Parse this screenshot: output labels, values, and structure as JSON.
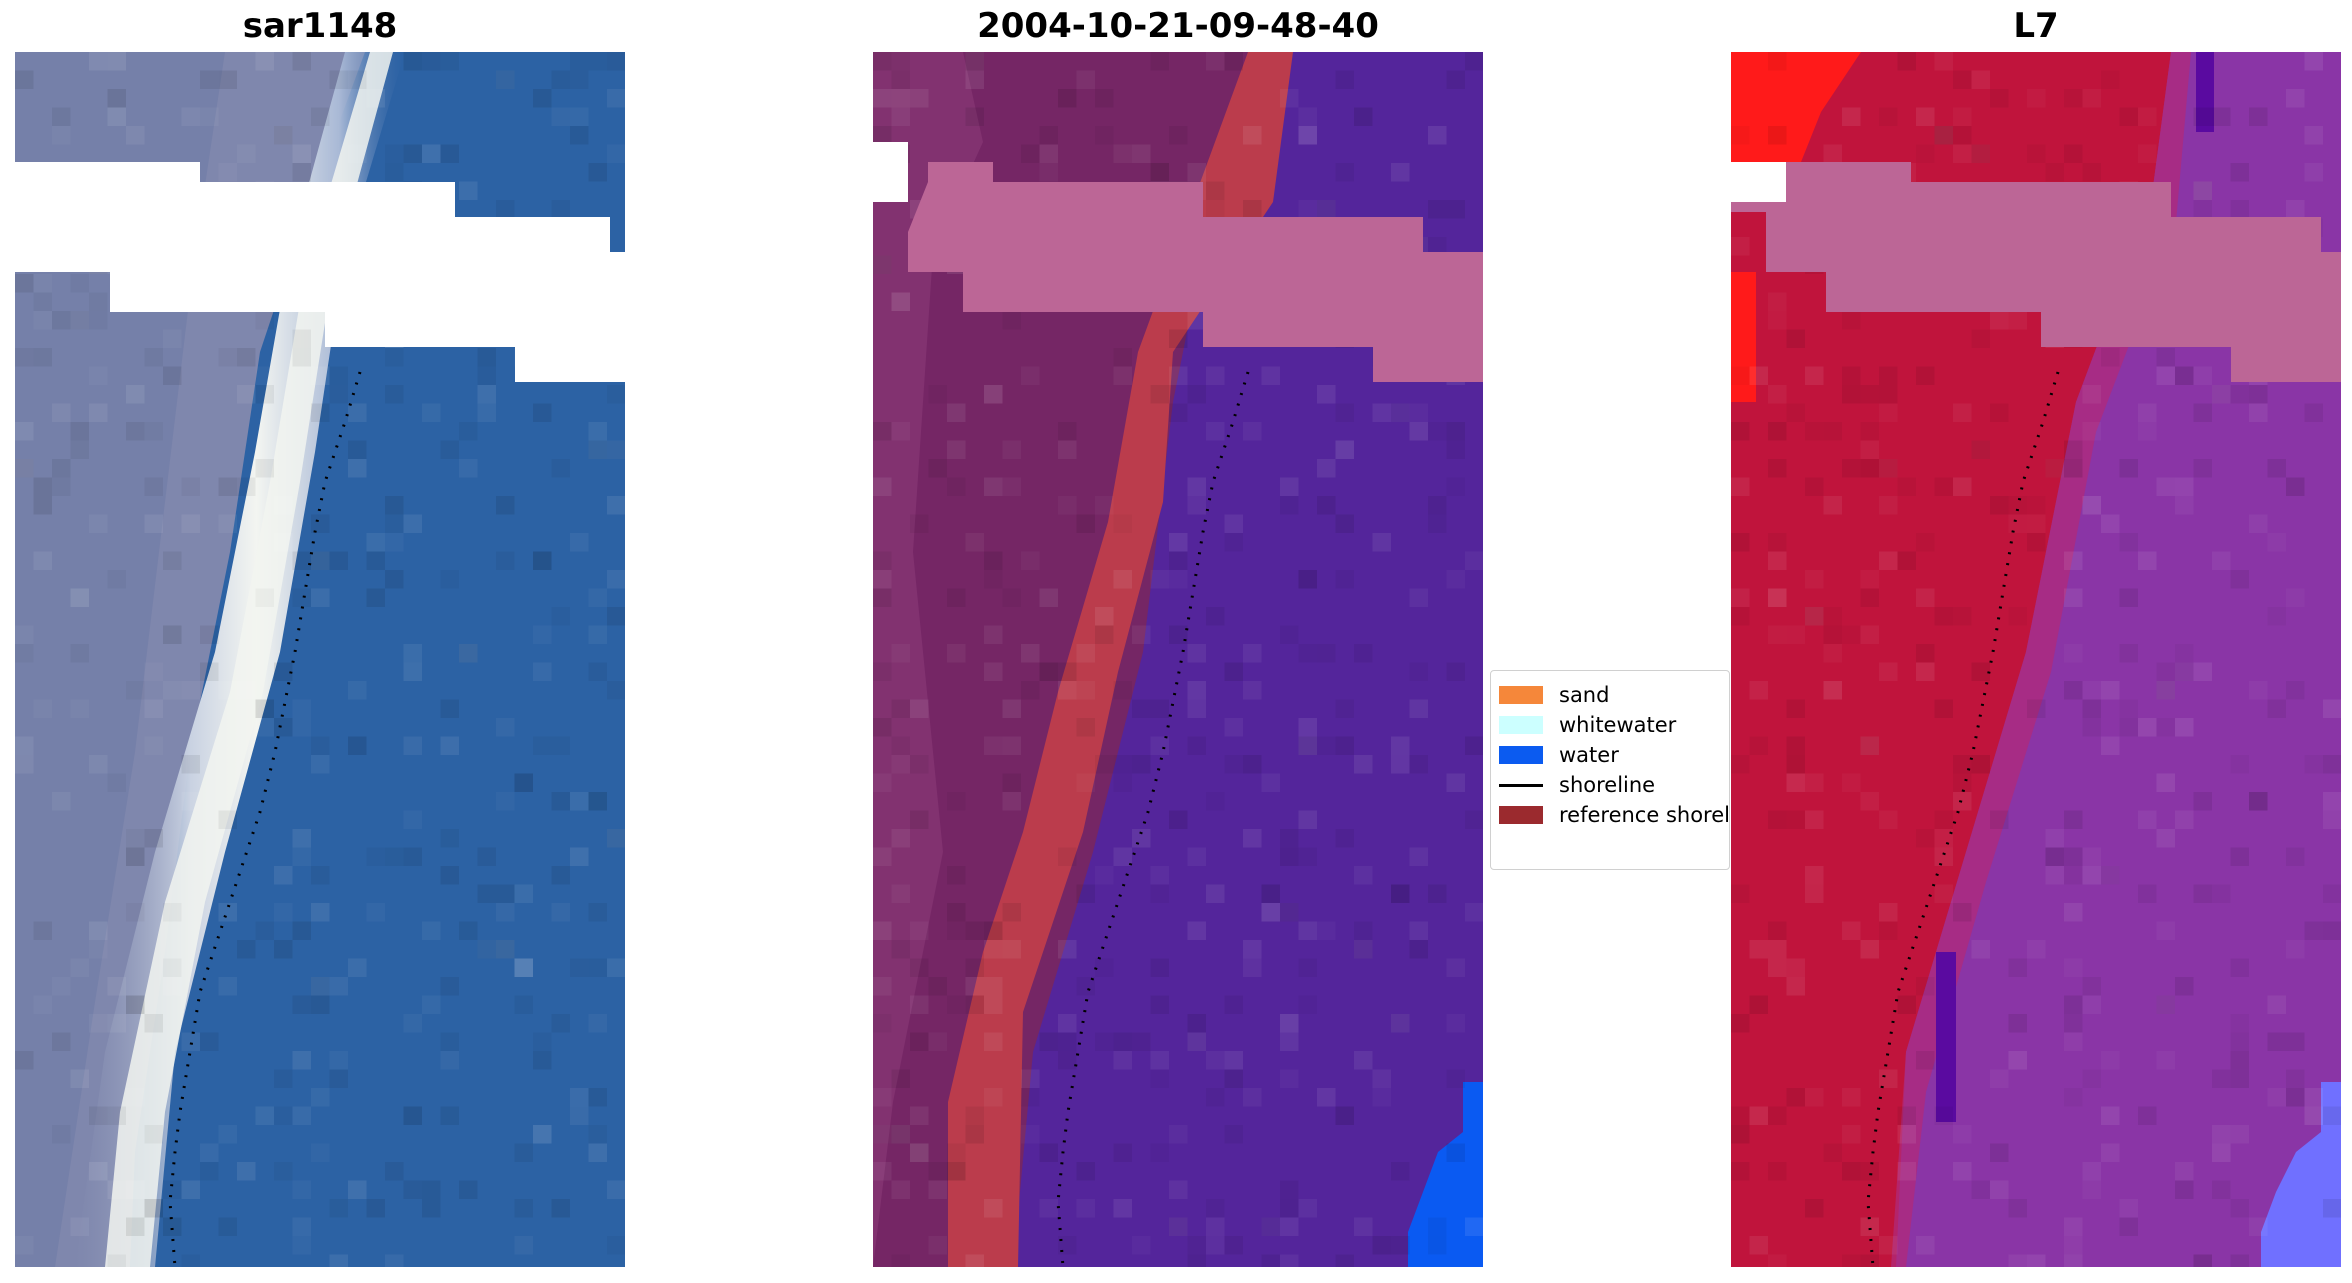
{
  "panels": {
    "rgb": {
      "title": "sar1148"
    },
    "classified": {
      "title": "2004-10-21-09-48-40"
    },
    "mndwi": {
      "title": "L7"
    }
  },
  "legend": {
    "items": [
      {
        "label": "sand",
        "color": "#f5873a",
        "kind": "patch"
      },
      {
        "label": "whitewater",
        "color": "#ccffff",
        "kind": "patch"
      },
      {
        "label": "water",
        "color": "#0b5bf0",
        "kind": "patch"
      },
      {
        "label": "shoreline",
        "color": "#000000",
        "kind": "line"
      },
      {
        "label": "reference shoreline",
        "color": "#9b2a2e",
        "kind": "patch"
      }
    ]
  },
  "colors": {
    "rgb_water": "#2c62a4",
    "rgb_land": "#7f87ad",
    "rgb_surf": "#f2f4f0",
    "classified_water": "#54259b",
    "classified_land": "#752665",
    "classified_sand_overlay": "#bb3c4c",
    "classified_cloud": "#bc6696",
    "classified_deep": "#0a5af2",
    "index_land": "#c0143c",
    "index_water": "#8a35a6",
    "index_bright": "#ff1a1a",
    "index_cloud": "#bc6696",
    "index_deep": "#7070ff",
    "shoreline": "#000000"
  }
}
